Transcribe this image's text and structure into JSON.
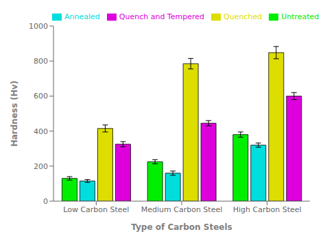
{
  "chart_data": {
    "type": "bar",
    "xlabel": "Type of Carbon Steels",
    "ylabel": "Hardness (Hv)",
    "categories": [
      "Low Carbon Steel",
      "Medium Carbon Steel",
      "High Carbon Steel"
    ],
    "series": [
      {
        "name": "Untreated",
        "color": "#00ee00",
        "values": [
          130,
          225,
          380
        ],
        "errors": [
          10,
          12,
          15
        ]
      },
      {
        "name": "Annealed",
        "color": "#00dddd",
        "values": [
          115,
          160,
          320
        ],
        "errors": [
          8,
          12,
          12
        ]
      },
      {
        "name": "Quenched",
        "color": "#dddd00",
        "values": [
          415,
          785,
          848
        ],
        "errors": [
          20,
          30,
          35
        ]
      },
      {
        "name": "Quench and Tempered",
        "color": "#dd00dd",
        "values": [
          325,
          445,
          600
        ],
        "errors": [
          15,
          15,
          20
        ]
      }
    ],
    "ylim": [
      0,
      1000
    ],
    "yticks": [
      0,
      200,
      400,
      600,
      800,
      1000
    ],
    "grid": false,
    "legend": "upper left"
  }
}
